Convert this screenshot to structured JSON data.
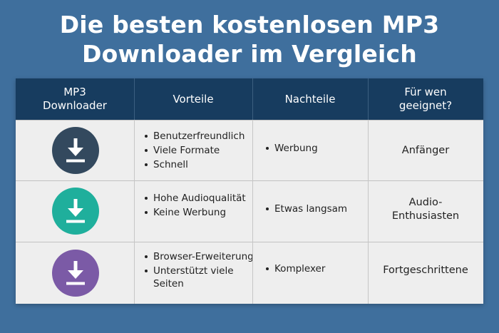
{
  "title": {
    "line1": "Die besten kostenlosen MP3",
    "line2": "Downloader im Vergleich"
  },
  "table": {
    "headers": {
      "downloader": [
        "MP3",
        "Downloader"
      ],
      "pros": "Vorteile",
      "cons": "Nachteile",
      "audience": [
        "Für wen",
        "geeignet?"
      ]
    },
    "rows": [
      {
        "icon": "download-icon",
        "icon_color": "#33495e",
        "pros": [
          "Benutzerfreundlich",
          "Viele Formate",
          "Schnell"
        ],
        "cons": [
          "Werbung"
        ],
        "audience": [
          "Anfänger"
        ]
      },
      {
        "icon": "download-icon",
        "icon_color": "#1faf9c",
        "pros": [
          "Hohe Audioqualität",
          "Keine Werbung"
        ],
        "cons": [
          "Etwas langsam"
        ],
        "audience": [
          "Audio-",
          "Enthusiasten"
        ]
      },
      {
        "icon": "download-icon",
        "icon_color": "#7b5aa6",
        "pros": [
          "Browser-Erweiterung",
          "Unterstützt viele",
          "Seiten"
        ],
        "cons": [
          "Komplexer"
        ],
        "audience": [
          "Fortgeschrittene"
        ]
      }
    ]
  }
}
